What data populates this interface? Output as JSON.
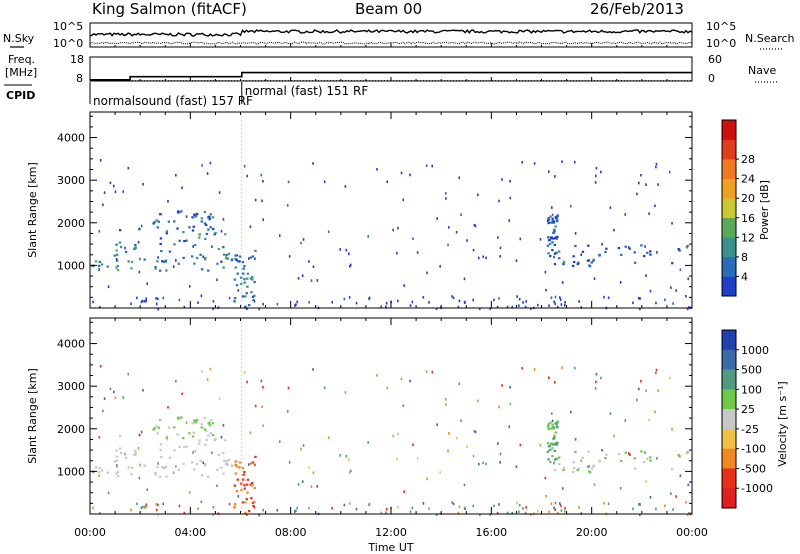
{
  "header": {
    "station": "King Salmon (fitACF)",
    "beam": "Beam 00",
    "date": "26/Feb/2013"
  },
  "strip": {
    "left_labels": {
      "nsky": "N.Sky",
      "freq_line1": "Freq.",
      "freq_line2": "[MHz]",
      "cpid": "CPID"
    },
    "right_labels": {
      "nsearch": "N.Search",
      "nave": "Nave"
    },
    "noise_ticks_left": [
      "10^5",
      "10^0"
    ],
    "noise_ticks_right": [
      "10^5",
      "10^0"
    ],
    "freq_ticks_left": [
      "18",
      "8"
    ],
    "freq_ticks_right": [
      "60",
      "0"
    ],
    "cpid_segments": [
      {
        "label": "normalsound (fast) 157 RF",
        "start": 0,
        "end": 6.05
      },
      {
        "label": "normal (fast) 151 RF",
        "start": 6.05,
        "end": 24
      }
    ],
    "freq_step": {
      "x": [
        0,
        1.0,
        1.6,
        6.05,
        24
      ],
      "y": [
        8.5,
        8.5,
        9.8,
        11.5,
        11.5
      ]
    },
    "nave_level": 1
  },
  "power_panel": {
    "ylabel": "Slant Range [km]",
    "yticks": [
      "1000",
      "2000",
      "3000",
      "4000"
    ],
    "colorbar_label": "Power [dB]",
    "colorbar_ticks": [
      "4",
      "8",
      "12",
      "16",
      "20",
      "24",
      "28"
    ],
    "colorbar_colors": [
      "#1f3fc8",
      "#2a6db5",
      "#3a8f8f",
      "#5aa85a",
      "#c8c832",
      "#f0a020",
      "#f07820",
      "#e03c1c",
      "#cc1010"
    ]
  },
  "velocity_panel": {
    "ylabel": "Slant Range [km]",
    "yticks": [
      "1000",
      "2000",
      "3000",
      "4000"
    ],
    "colorbar_label": "Velocity [m s⁻¹]",
    "colorbar_ticks": [
      "1000",
      "500",
      "100",
      "25",
      "-25",
      "-100",
      "-500",
      "-1000"
    ],
    "colorbar_colors": [
      "#2040b0",
      "#3a6aa8",
      "#4f9a80",
      "#6ec84a",
      "#c8c8c8",
      "#f0c048",
      "#f08a20",
      "#e83018"
    ]
  },
  "xaxis": {
    "label": "Time UT",
    "ticks": [
      "00:00",
      "04:00",
      "08:00",
      "12:00",
      "16:00",
      "20:00",
      "00:00"
    ]
  },
  "chart_data": {
    "type": "heatmap",
    "title": "King Salmon (fitACF) Beam 00 26/Feb/2013",
    "xlabel": "Time UT",
    "ylabel": "Slant Range [km]",
    "xlim": [
      0,
      24
    ],
    "ylim": [
      0,
      4600
    ],
    "panels": [
      "Power [dB]",
      "Velocity [m s⁻¹]"
    ],
    "scatter_regions": [
      {
        "t_start": 0.0,
        "t_end": 5.9,
        "r_start": 900,
        "r_end": 1300,
        "power": 10,
        "velocity": 0
      },
      {
        "t_start": 1.0,
        "t_end": 5.9,
        "r_start": 1100,
        "r_end": 1900,
        "power": 8,
        "velocity": 0
      },
      {
        "t_start": 2.4,
        "t_end": 5.0,
        "r_start": 1800,
        "r_end": 2300,
        "power": 6,
        "velocity": 25
      },
      {
        "t_start": 5.7,
        "t_end": 6.6,
        "r_start": 0,
        "r_end": 1400,
        "power": 6,
        "velocity": -500
      },
      {
        "t_start": 18.2,
        "t_end": 18.6,
        "r_start": 1300,
        "r_end": 2200,
        "power": 4,
        "velocity": 100
      },
      {
        "t_start": 18.3,
        "t_end": 24.0,
        "r_start": 1000,
        "r_end": 1500,
        "power": 4,
        "velocity": 25
      }
    ]
  }
}
